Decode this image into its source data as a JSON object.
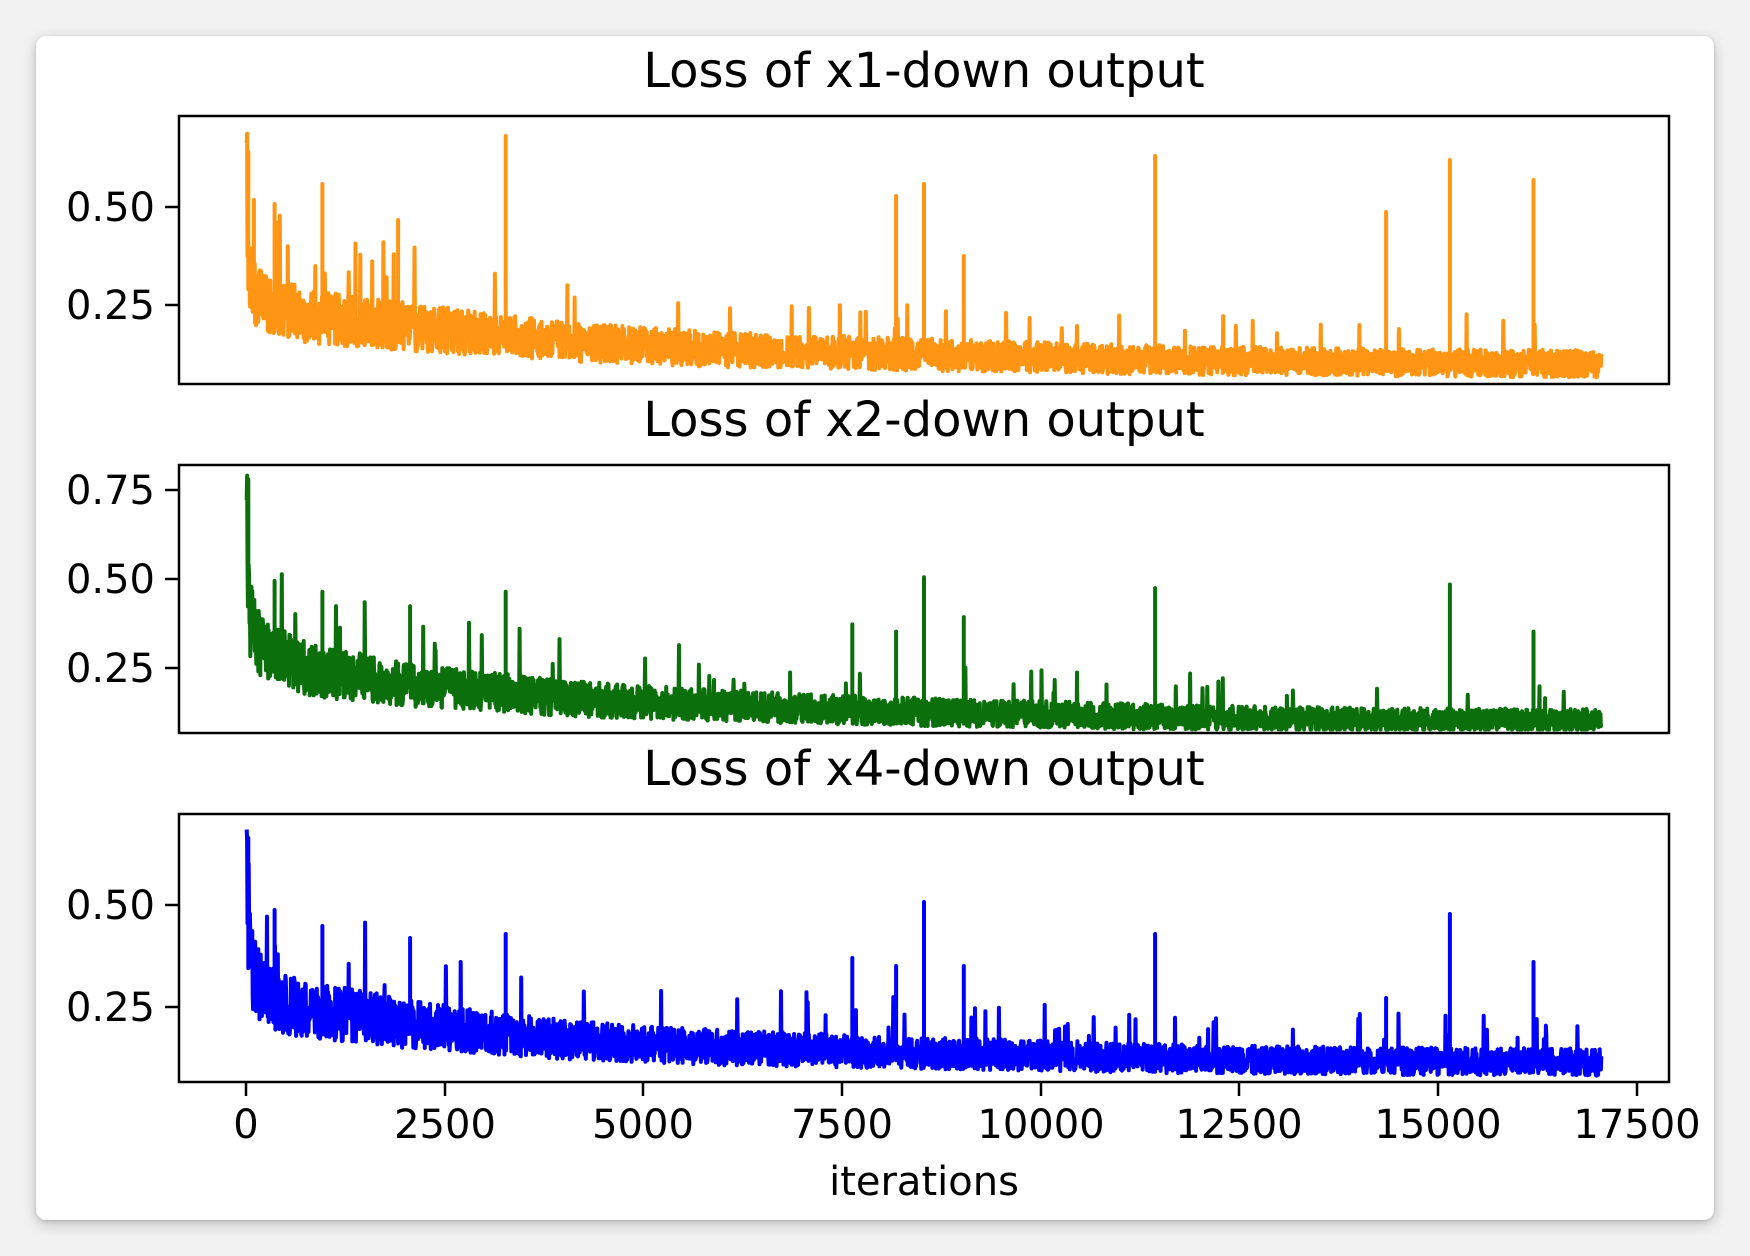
{
  "chart_data": [
    {
      "type": "line",
      "title": "Loss of x1-down output",
      "xlabel": "",
      "ylabel": "",
      "color": "#ff9512",
      "xlim": [
        -850,
        17850
      ],
      "ylim": [
        0.07,
        0.74
      ],
      "yticks": [
        0.25,
        0.5
      ],
      "ytick_labels": [
        "0.25",
        "0.50"
      ],
      "show_xticks": false,
      "grid": false,
      "series": [
        {
          "x": [
            0,
            20,
            50,
            100,
            200,
            300,
            500,
            700,
            1000,
            1500,
            2000,
            2500,
            3000,
            3500,
            4000,
            5000,
            6000,
            7000,
            8000,
            9000,
            10000,
            11000,
            12000,
            13000,
            14000,
            15000,
            16000,
            17000
          ],
          "y": [
            0.62,
            0.4,
            0.33,
            0.3,
            0.28,
            0.27,
            0.26,
            0.25,
            0.24,
            0.23,
            0.22,
            0.21,
            0.2,
            0.19,
            0.18,
            0.17,
            0.16,
            0.155,
            0.15,
            0.145,
            0.14,
            0.135,
            0.132,
            0.13,
            0.128,
            0.126,
            0.125,
            0.124
          ]
        }
      ],
      "spikes": [
        [
          20,
          0.65
        ],
        [
          90,
          0.53
        ],
        [
          350,
          0.52
        ],
        [
          950,
          0.57
        ],
        [
          1900,
          0.48
        ],
        [
          3250,
          0.69
        ],
        [
          8150,
          0.54
        ],
        [
          8500,
          0.57
        ],
        [
          9000,
          0.39
        ],
        [
          11400,
          0.64
        ],
        [
          14300,
          0.5
        ],
        [
          15100,
          0.63
        ],
        [
          16150,
          0.58
        ]
      ]
    },
    {
      "type": "line",
      "title": "Loss of x2-down output",
      "xlabel": "",
      "ylabel": "",
      "color": "#0b700b",
      "xlim": [
        -850,
        17850
      ],
      "ylim": [
        0.08,
        0.82
      ],
      "yticks": [
        0.25,
        0.5,
        0.75
      ],
      "ytick_labels": [
        "0.25",
        "0.50",
        "0.75"
      ],
      "show_xticks": false,
      "grid": false,
      "series": [
        {
          "x": [
            0,
            20,
            50,
            100,
            200,
            300,
            500,
            700,
            1000,
            1500,
            2000,
            2500,
            3000,
            3500,
            4000,
            5000,
            6000,
            7000,
            8000,
            9000,
            10000,
            11000,
            12000,
            13000,
            14000,
            15000,
            16000,
            17000
          ],
          "y": [
            0.78,
            0.48,
            0.4,
            0.36,
            0.33,
            0.31,
            0.29,
            0.27,
            0.25,
            0.24,
            0.22,
            0.21,
            0.2,
            0.19,
            0.18,
            0.17,
            0.16,
            0.15,
            0.145,
            0.14,
            0.135,
            0.13,
            0.125,
            0.123,
            0.12,
            0.12,
            0.118,
            0.117
          ]
        }
      ],
      "spikes": [
        [
          20,
          0.78
        ],
        [
          350,
          0.5
        ],
        [
          950,
          0.47
        ],
        [
          2050,
          0.43
        ],
        [
          3250,
          0.47
        ],
        [
          7600,
          0.38
        ],
        [
          8150,
          0.36
        ],
        [
          8500,
          0.51
        ],
        [
          9000,
          0.4
        ],
        [
          11400,
          0.48
        ],
        [
          15100,
          0.49
        ],
        [
          16150,
          0.36
        ]
      ]
    },
    {
      "type": "line",
      "title": "Loss of x4-down output",
      "xlabel": "iterations",
      "ylabel": "",
      "color": "#0000ff",
      "xlim": [
        -850,
        17850
      ],
      "ylim": [
        0.07,
        0.74
      ],
      "yticks": [
        0.25,
        0.5
      ],
      "ytick_labels": [
        "0.25",
        "0.50"
      ],
      "xticks": [
        0,
        2500,
        5000,
        7500,
        10000,
        12500,
        15000,
        17500
      ],
      "xtick_labels": [
        "0",
        "2500",
        "5000",
        "7500",
        "10000",
        "12500",
        "15000",
        "17500"
      ],
      "show_xticks": true,
      "grid": false,
      "series": [
        {
          "x": [
            0,
            20,
            50,
            100,
            200,
            300,
            500,
            700,
            1000,
            1500,
            2000,
            2500,
            3000,
            3500,
            4000,
            5000,
            6000,
            7000,
            8000,
            9000,
            10000,
            11000,
            12000,
            13000,
            14000,
            15000,
            16000,
            17000
          ],
          "y": [
            0.68,
            0.45,
            0.38,
            0.34,
            0.31,
            0.29,
            0.27,
            0.26,
            0.25,
            0.24,
            0.22,
            0.21,
            0.2,
            0.19,
            0.18,
            0.17,
            0.16,
            0.155,
            0.15,
            0.145,
            0.14,
            0.135,
            0.13,
            0.128,
            0.126,
            0.125,
            0.124,
            0.123
          ]
        }
      ],
      "spikes": [
        [
          20,
          0.68
        ],
        [
          350,
          0.5
        ],
        [
          950,
          0.46
        ],
        [
          2050,
          0.43
        ],
        [
          3250,
          0.44
        ],
        [
          7600,
          0.38
        ],
        [
          8150,
          0.36
        ],
        [
          8500,
          0.52
        ],
        [
          9000,
          0.36
        ],
        [
          11400,
          0.44
        ],
        [
          14300,
          0.28
        ],
        [
          15100,
          0.49
        ],
        [
          16150,
          0.37
        ]
      ]
    }
  ]
}
